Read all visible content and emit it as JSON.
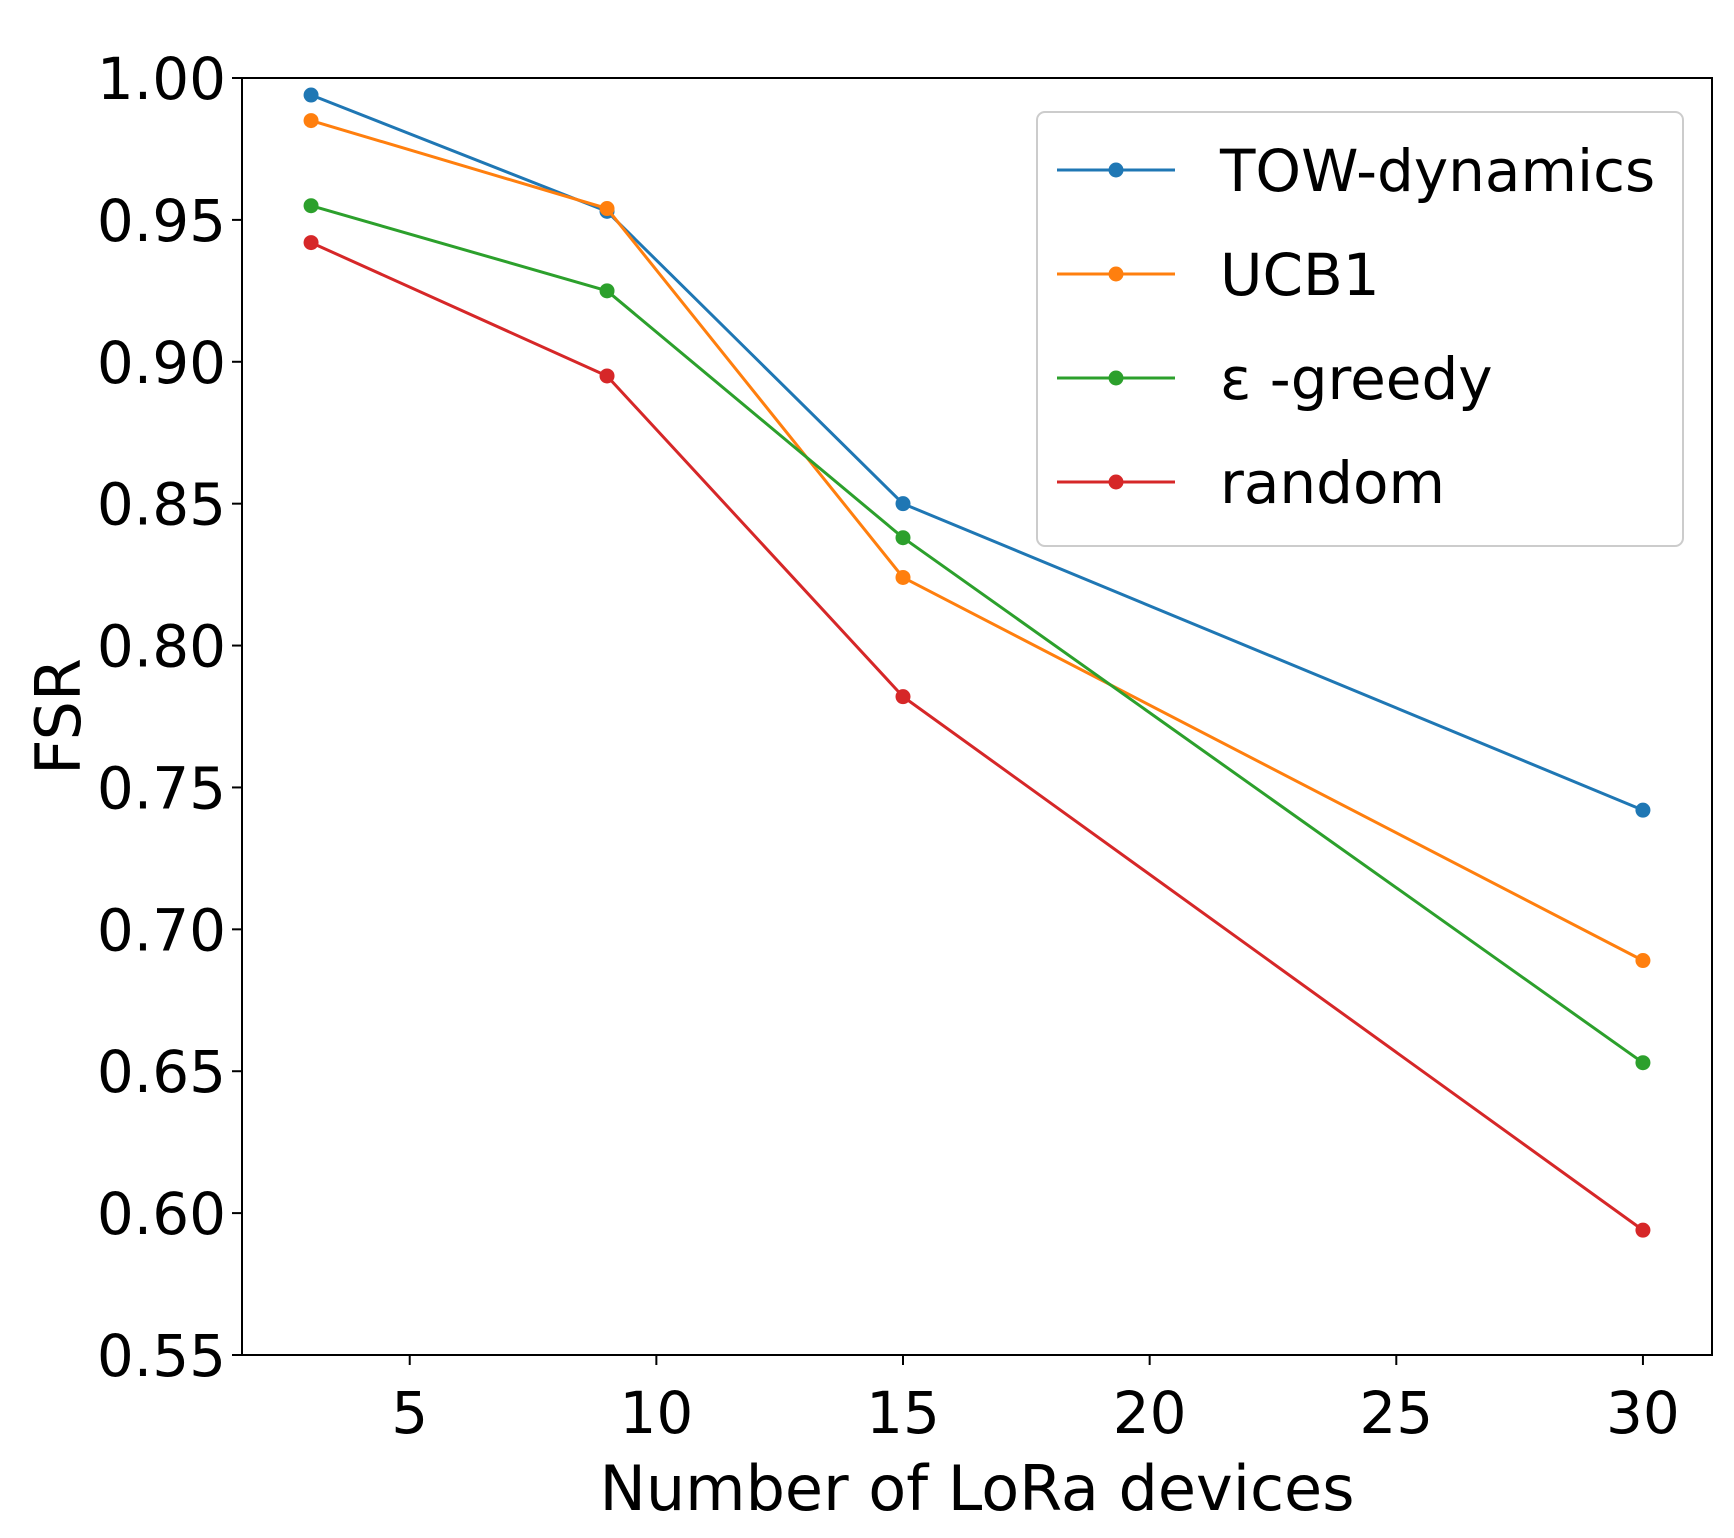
{
  "chart_data": {
    "type": "line",
    "title": "",
    "xlabel": "Number of LoRa devices",
    "ylabel": "FSR",
    "xlim": [
      1.6,
      31.4
    ],
    "ylim": [
      0.55,
      1.0
    ],
    "xticks": [
      5,
      10,
      15,
      20,
      25,
      30
    ],
    "yticks": [
      0.55,
      0.6,
      0.65,
      0.7,
      0.75,
      0.8,
      0.85,
      0.9,
      0.95,
      1.0
    ],
    "xtick_labels": [
      "5",
      "10",
      "15",
      "20",
      "25",
      "30"
    ],
    "ytick_labels": [
      "0.55",
      "0.60",
      "0.65",
      "0.70",
      "0.75",
      "0.80",
      "0.85",
      "0.90",
      "0.95",
      "1.00"
    ],
    "grid": false,
    "legend_position": "top-right",
    "x": [
      3,
      9,
      15,
      30
    ],
    "series": [
      {
        "name": "TOW-dynamics",
        "color": "#1f77b4",
        "values": [
          0.994,
          0.953,
          0.85,
          0.742
        ]
      },
      {
        "name": "UCB1",
        "color": "#ff7f0e",
        "values": [
          0.985,
          0.954,
          0.824,
          0.689
        ]
      },
      {
        "name": "ε -greedy",
        "color": "#2ca02c",
        "values": [
          0.955,
          0.925,
          0.838,
          0.653
        ]
      },
      {
        "name": "random",
        "color": "#d62728",
        "values": [
          0.942,
          0.895,
          0.782,
          0.594
        ]
      }
    ]
  }
}
